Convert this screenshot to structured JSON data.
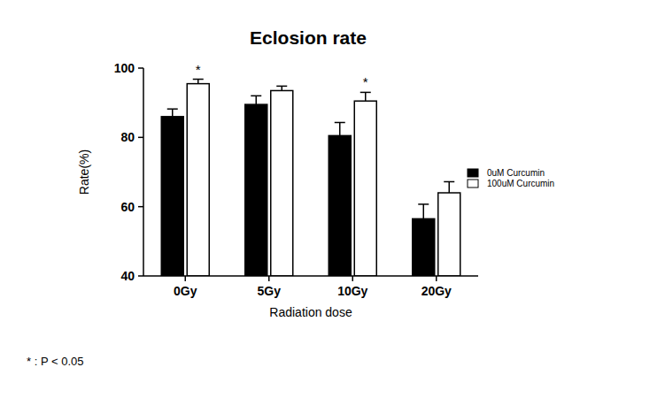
{
  "chart_data": {
    "type": "bar",
    "title": "Eclosion rate",
    "x_label": "Radiation dose",
    "y_label": "Rate(%)",
    "categories": [
      "0Gy",
      "5Gy",
      "10Gy",
      "20Gy"
    ],
    "series": [
      {
        "name": "0uM Curcumin",
        "color": "#000000",
        "values": [
          86,
          89.5,
          80.5,
          56.5
        ],
        "errors": [
          2.2,
          2.5,
          3.8,
          4.2
        ]
      },
      {
        "name": "100uM Curcumin",
        "color": "#ffffff",
        "values": [
          95.5,
          93.5,
          90.5,
          64
        ],
        "errors": [
          1.3,
          1.3,
          2.5,
          3.2
        ]
      }
    ],
    "ylim": [
      40,
      100
    ],
    "yticks": [
      40,
      60,
      80,
      100
    ],
    "grid": false,
    "legend": "right",
    "annotations": [
      {
        "text": "*",
        "category": "0Gy",
        "series": "100uM Curcumin"
      },
      {
        "text": "*",
        "category": "10Gy",
        "series": "100uM Curcumin"
      }
    ],
    "footnote": "* : P < 0.05"
  }
}
